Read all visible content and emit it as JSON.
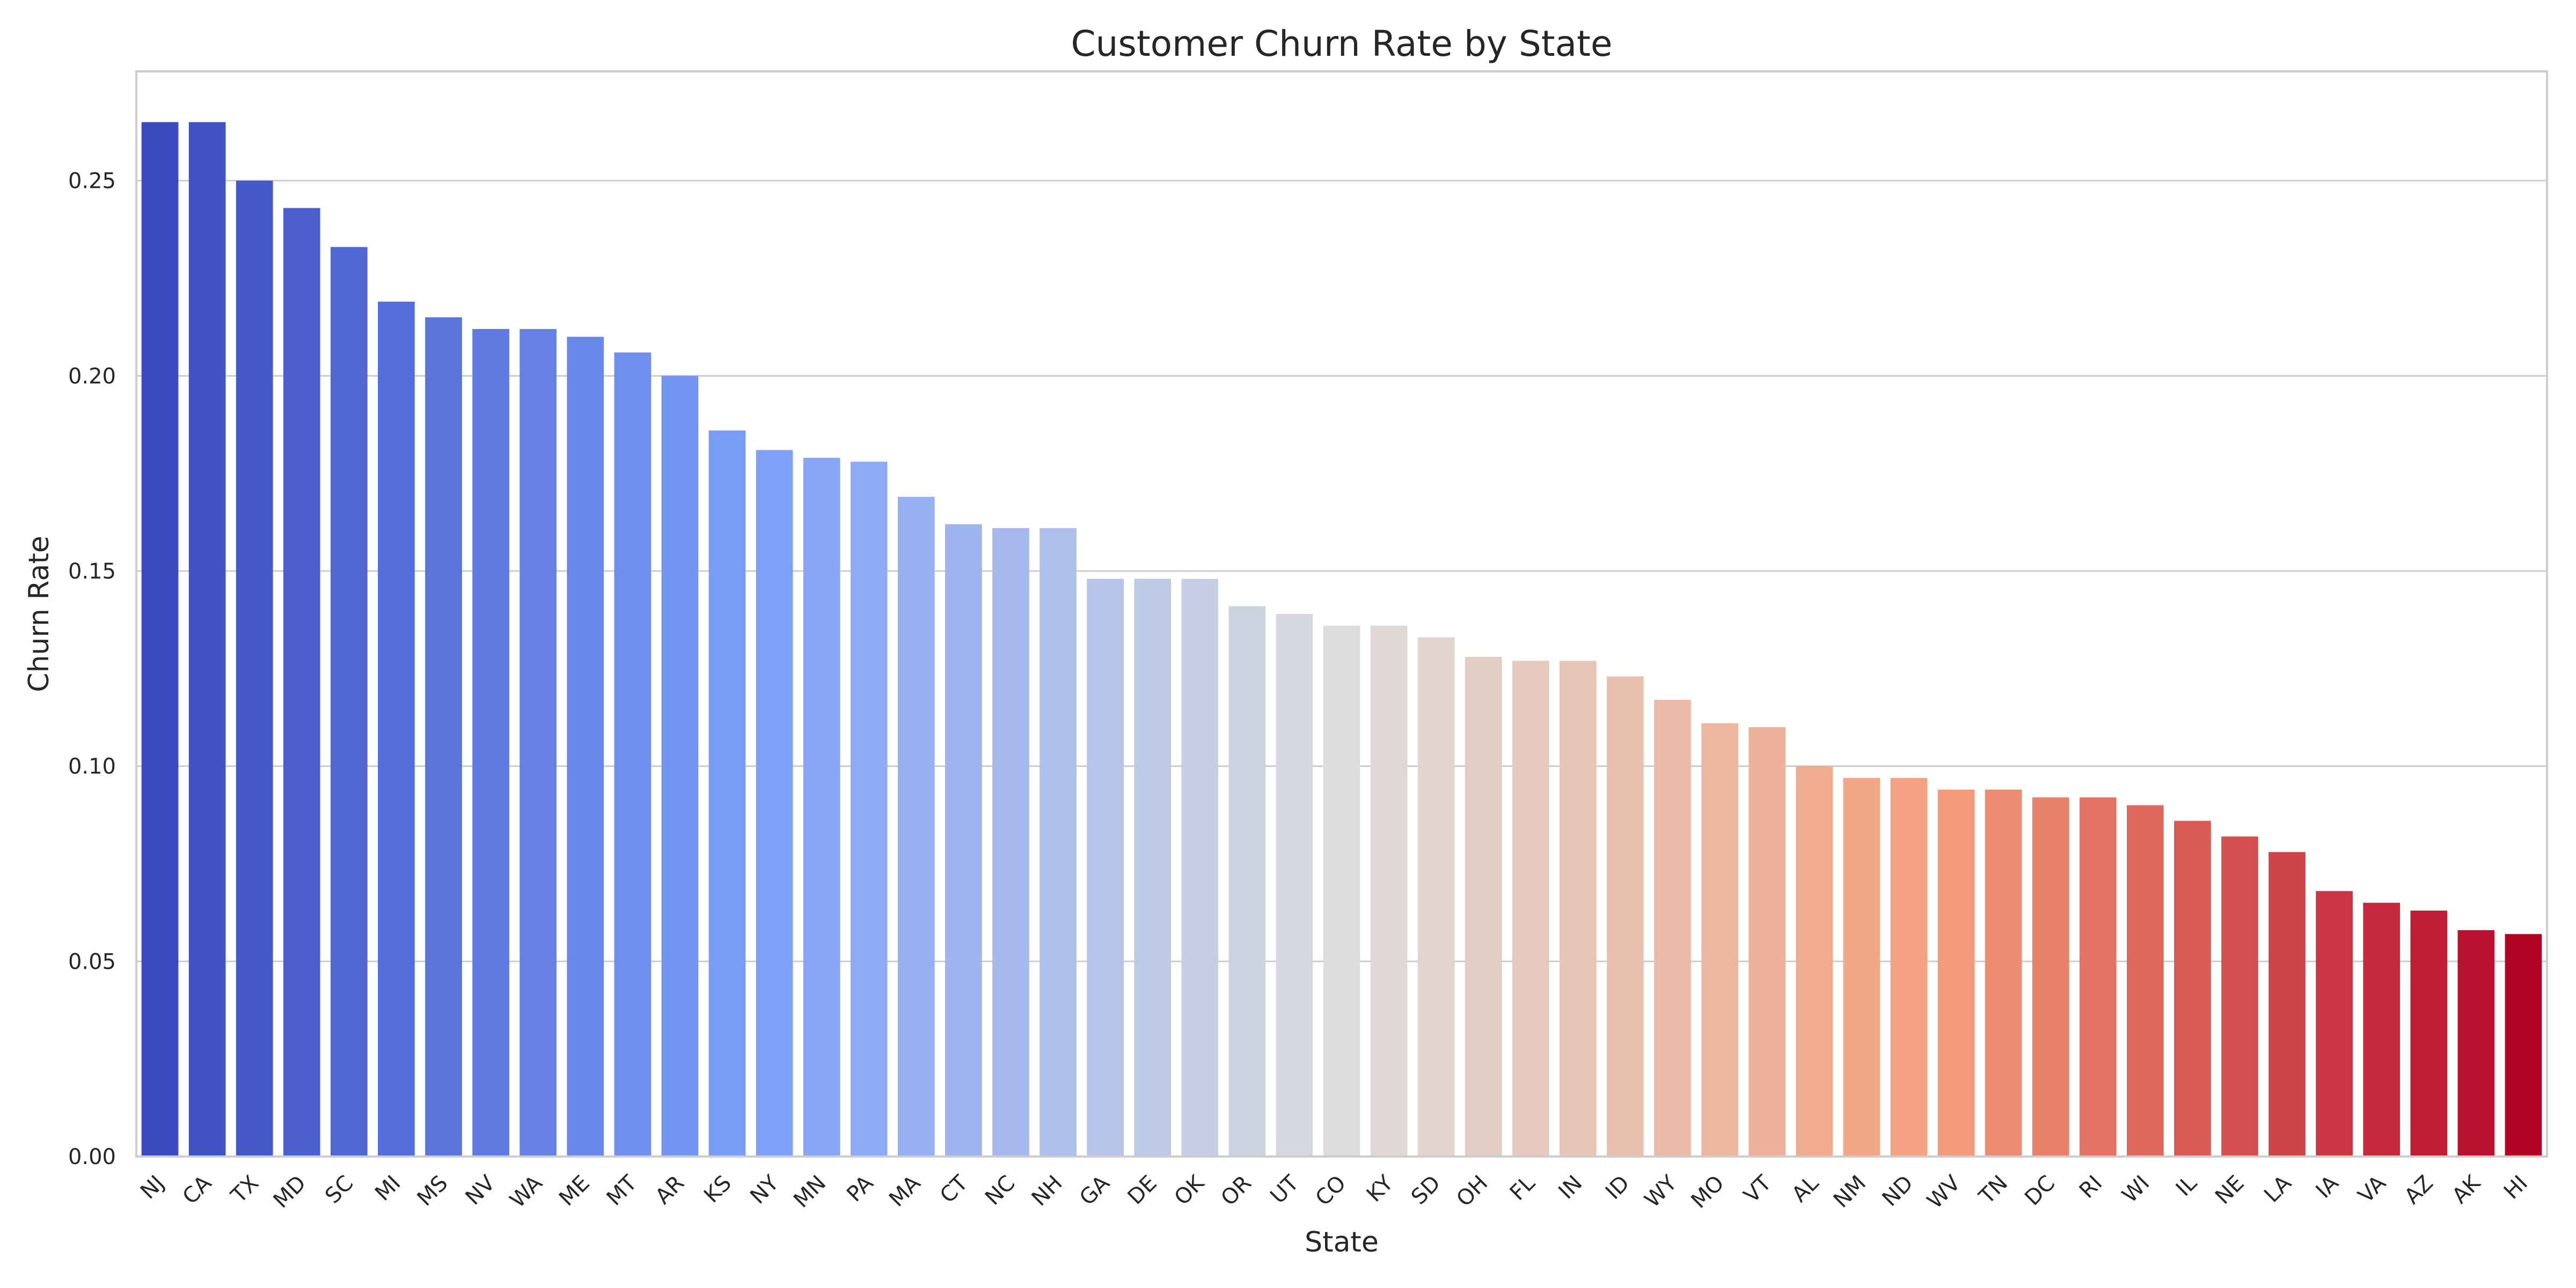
{
  "chart_data": {
    "type": "bar",
    "title": "Customer Churn Rate by State",
    "xlabel": "State",
    "ylabel": "Churn Rate",
    "ylim": [
      0,
      0.278
    ],
    "yticks": [
      0.0,
      0.05,
      0.1,
      0.15,
      0.2,
      0.25
    ],
    "ytick_labels": [
      "0.00",
      "0.05",
      "0.10",
      "0.15",
      "0.20",
      "0.25"
    ],
    "grid": true,
    "palette": "coolwarm",
    "categories": [
      "NJ",
      "CA",
      "TX",
      "MD",
      "SC",
      "MI",
      "MS",
      "NV",
      "WA",
      "ME",
      "MT",
      "AR",
      "KS",
      "NY",
      "MN",
      "PA",
      "MA",
      "CT",
      "NC",
      "NH",
      "GA",
      "DE",
      "OK",
      "OR",
      "UT",
      "CO",
      "KY",
      "SD",
      "OH",
      "FL",
      "IN",
      "ID",
      "WY",
      "MO",
      "VT",
      "AL",
      "NM",
      "ND",
      "WV",
      "TN",
      "DC",
      "RI",
      "WI",
      "IL",
      "NE",
      "LA",
      "IA",
      "VA",
      "AZ",
      "AK",
      "HI"
    ],
    "values": [
      0.265,
      0.265,
      0.25,
      0.243,
      0.233,
      0.219,
      0.215,
      0.212,
      0.212,
      0.21,
      0.206,
      0.2,
      0.186,
      0.181,
      0.179,
      0.178,
      0.169,
      0.162,
      0.161,
      0.161,
      0.148,
      0.148,
      0.148,
      0.141,
      0.139,
      0.136,
      0.136,
      0.133,
      0.128,
      0.127,
      0.127,
      0.123,
      0.117,
      0.111,
      0.11,
      0.1,
      0.097,
      0.097,
      0.094,
      0.094,
      0.092,
      0.092,
      0.09,
      0.086,
      0.082,
      0.078,
      0.068,
      0.065,
      0.063,
      0.058,
      0.057
    ]
  }
}
